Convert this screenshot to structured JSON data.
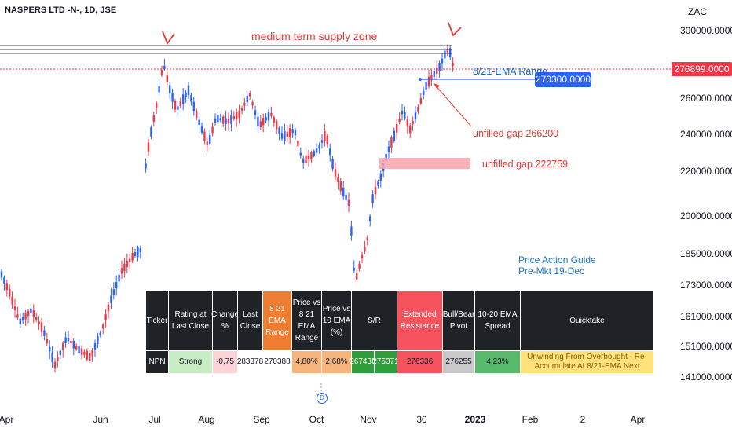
{
  "title": "NASPERS LTD -N-, 1D, JSE",
  "currency": "ZAC",
  "chart_data": {
    "type": "candlestick",
    "title": "NASPERS LTD -N-, 1D, JSE",
    "y_ticks": [
      "300000.0000",
      "260000.0000",
      "240000.0000",
      "220000.0000",
      "200000.0000",
      "185000.0000",
      "173000.0000",
      "161000.0000",
      "151000.0000",
      "141000.0000"
    ],
    "x_ticks": [
      "Apr",
      "Jun",
      "Jul",
      "Aug",
      "Sep",
      "Oct",
      "Nov",
      "30",
      "2023",
      "Feb",
      "2",
      "Apr"
    ],
    "last_price": "276899.0000",
    "ema_level": "270300.0000",
    "supply_zone_label": "medium term supply zone",
    "ema_range_label": "8/21-EMA Range",
    "gap_labels": [
      "unfilled gap 266200",
      "unfilled gap 222759"
    ],
    "guide_lines": [
      "Price Action Guide",
      "Pre-Mkt 19-Dec"
    ],
    "up_color": "#2962ff",
    "down_color": "#f23645",
    "grid": false
  },
  "table": {
    "headers": [
      "Ticker",
      "Rating at Last Close",
      "Change %",
      "Last Close",
      "8 21 EMA Range",
      "Price vs 8 21 EMA Range",
      "Price vs 10 EMA (%)",
      "S/R",
      "Extended Resistance",
      "Bull/Bear Pivot",
      "10-20 EMA Spread",
      "Quicktake"
    ],
    "values": [
      "NPN",
      "Strong",
      "-0,75",
      "283378",
      "270388",
      "4,80%",
      "2,68%",
      "267438",
      "275371",
      "276336",
      "276255",
      "4,23%",
      "Unwinding From Overbought - Re-Accumulate At 8/21-EMA Next"
    ]
  },
  "badge": "D"
}
